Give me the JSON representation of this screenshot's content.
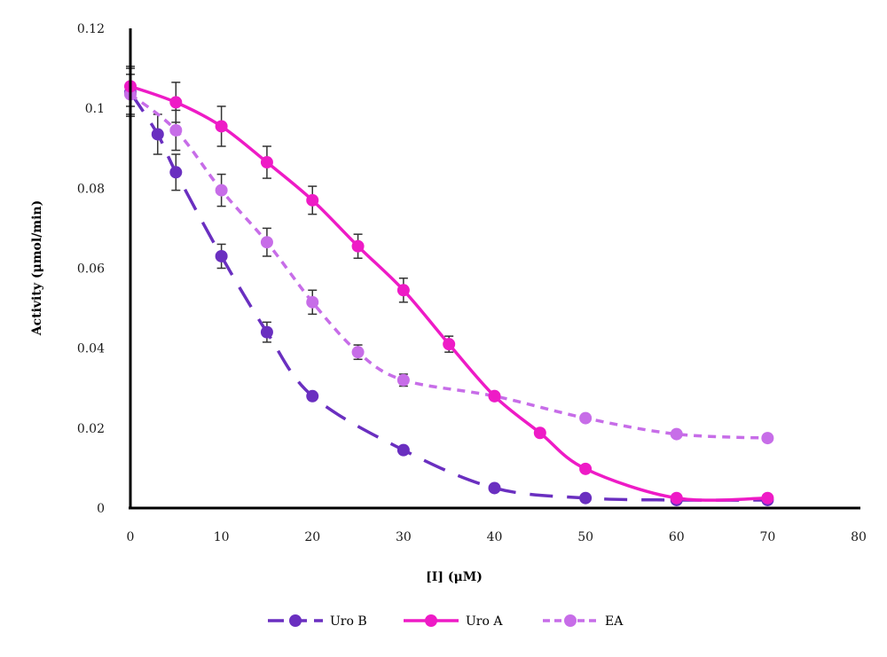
{
  "chart_data": {
    "type": "line",
    "title": "",
    "xlabel": "[I] (μM)",
    "ylabel": "Activity (μmol/min)",
    "xlim": [
      0,
      80
    ],
    "ylim": [
      0,
      0.12
    ],
    "x_ticks": [
      "0",
      "10",
      "20",
      "30",
      "40",
      "50",
      "60",
      "70",
      "80"
    ],
    "y_ticks": [
      "0",
      "0.02",
      "0.04",
      "0.06",
      "0.08",
      "0.1",
      "0.12"
    ],
    "grid": false,
    "legend_position": "bottom",
    "series": [
      {
        "name": "Uro B",
        "color": "#6a2fc0",
        "line_style": "long-dash",
        "x": [
          0,
          3,
          5,
          10,
          15,
          20,
          30,
          40,
          50,
          60,
          70
        ],
        "y": [
          0.104,
          0.0935,
          0.084,
          0.063,
          0.044,
          0.028,
          0.0145,
          0.005,
          0.0025,
          0.002,
          0.002
        ],
        "error": [
          0.006,
          0.005,
          0.0045,
          0.003,
          0.0025,
          0,
          0,
          0,
          0,
          0,
          0
        ]
      },
      {
        "name": "Uro A",
        "color": "#ee1bc6",
        "line_style": "solid",
        "x": [
          0,
          5,
          10,
          15,
          20,
          25,
          30,
          35,
          40,
          45,
          50,
          60,
          70
        ],
        "y": [
          0.1055,
          0.1015,
          0.0955,
          0.0865,
          0.077,
          0.0655,
          0.0545,
          0.041,
          0.028,
          0.0188,
          0.0098,
          0.0025,
          0.0025
        ],
        "error": [
          0.005,
          0.005,
          0.005,
          0.004,
          0.0035,
          0.003,
          0.003,
          0.002,
          0,
          0,
          0,
          0,
          0
        ]
      },
      {
        "name": "EA",
        "color": "#c76de8",
        "line_style": "short-dash",
        "x": [
          0,
          5,
          10,
          15,
          20,
          25,
          30,
          40,
          50,
          60,
          70
        ],
        "y": [
          0.1035,
          0.0945,
          0.0795,
          0.0665,
          0.0515,
          0.039,
          0.032,
          0.028,
          0.0225,
          0.0185,
          0.0175
        ],
        "error": [
          0.005,
          0.005,
          0.004,
          0.0035,
          0.003,
          0.0018,
          0.0015,
          0,
          0,
          0,
          0
        ]
      }
    ]
  }
}
